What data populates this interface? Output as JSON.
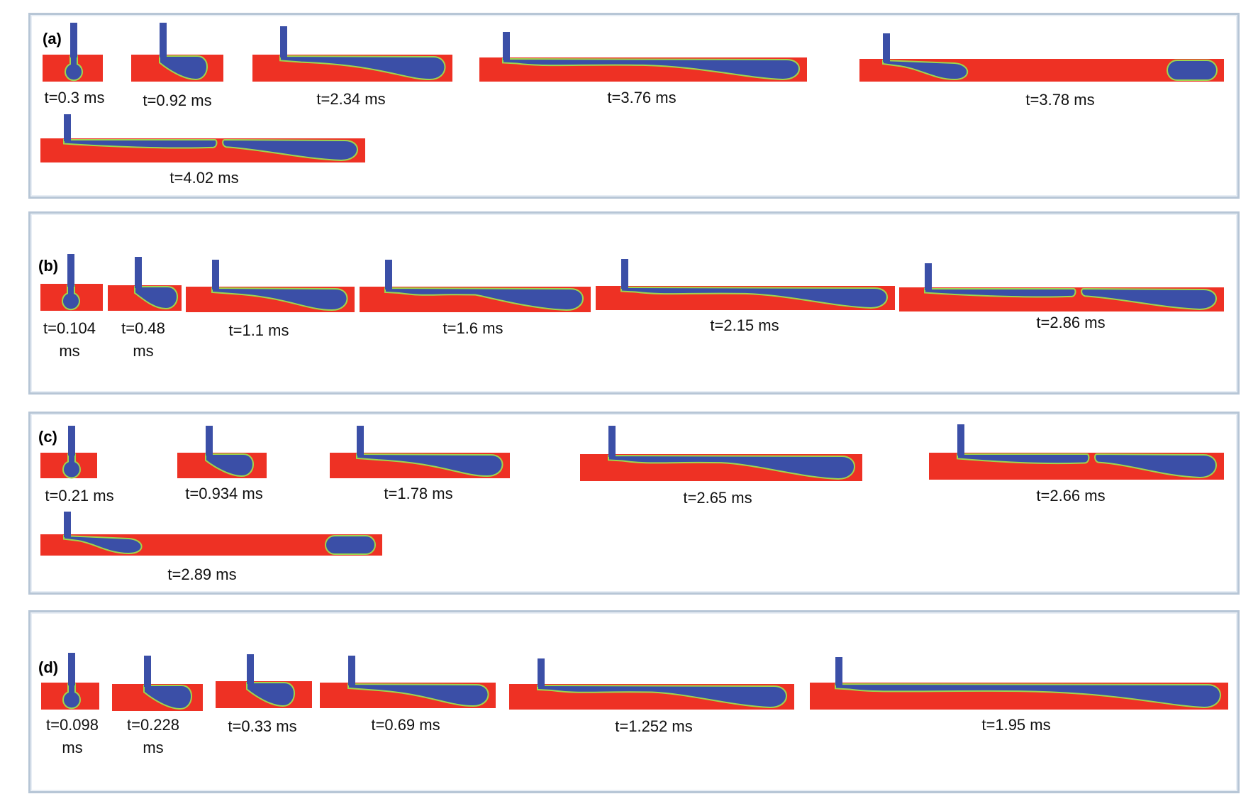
{
  "colors": {
    "liquid": "#ee3124",
    "droplet": "#3b4fa7",
    "interface": "#9ed64d",
    "panel_border": "#b7c6d6"
  },
  "panels": [
    {
      "label": "(a)",
      "frames": [
        {
          "time": "t=0.3 ms",
          "stage": "bulb"
        },
        {
          "time": "t=0.92 ms",
          "stage": "hook"
        },
        {
          "time": "t=2.34 ms",
          "stage": "elongate"
        },
        {
          "time": "t=3.76 ms",
          "stage": "long"
        },
        {
          "time": "t=3.78 ms",
          "stage": "detached"
        },
        {
          "time": "t=4.02 ms",
          "stage": "pinch"
        }
      ]
    },
    {
      "label": "(b)",
      "frames": [
        {
          "time": "t=0.104",
          "time2": "ms",
          "stage": "bulb"
        },
        {
          "time": "t=0.48",
          "time2": "ms",
          "stage": "hook"
        },
        {
          "time": "t=1.1 ms",
          "stage": "elongate"
        },
        {
          "time": "t=1.6 ms",
          "stage": "long"
        },
        {
          "time": "t=2.15 ms",
          "stage": "long"
        },
        {
          "time": "t=2.86 ms",
          "stage": "pinch"
        }
      ]
    },
    {
      "label": "(c)",
      "frames": [
        {
          "time": "t=0.21 ms",
          "stage": "bulb"
        },
        {
          "time": "t=0.934 ms",
          "stage": "hook"
        },
        {
          "time": "t=1.78 ms",
          "stage": "elongate"
        },
        {
          "time": "t=2.65 ms",
          "stage": "long"
        },
        {
          "time": "t=2.66 ms",
          "stage": "pinch"
        },
        {
          "time": "t=2.89 ms",
          "stage": "detached"
        }
      ]
    },
    {
      "label": "(d)",
      "frames": [
        {
          "time": "t=0.098",
          "time2": "ms",
          "stage": "bulb"
        },
        {
          "time": "t=0.228",
          "time2": "ms",
          "stage": "hook"
        },
        {
          "time": "t=0.33 ms",
          "stage": "hook"
        },
        {
          "time": "t=0.69 ms",
          "stage": "elongate"
        },
        {
          "time": "t=1.252 ms",
          "stage": "long"
        },
        {
          "time": "t=1.95 ms",
          "stage": "long"
        }
      ]
    }
  ]
}
